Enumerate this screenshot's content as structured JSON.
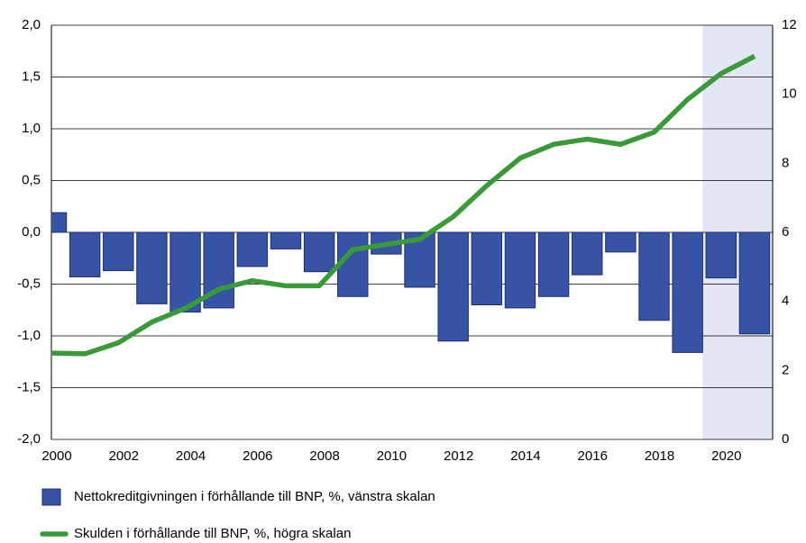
{
  "chart_data": {
    "type": "bar_line",
    "x": [
      2000,
      2001,
      2002,
      2003,
      2004,
      2005,
      2006,
      2007,
      2008,
      2009,
      2010,
      2011,
      2012,
      2013,
      2014,
      2015,
      2016,
      2017,
      2018,
      2019,
      2020,
      2021
    ],
    "series": [
      {
        "name": "Nettokreditgivningen i förhållande till BNP, %, vänstra skalan",
        "type": "bar",
        "axis": "y",
        "color": "#3753a5",
        "values": [
          0.19,
          -0.43,
          -0.37,
          -0.69,
          -0.77,
          -0.73,
          -0.33,
          -0.16,
          -0.38,
          -0.62,
          -0.21,
          -0.53,
          -1.05,
          -0.7,
          -0.73,
          -0.62,
          -0.41,
          -0.19,
          -0.85,
          -1.16,
          -0.44,
          -0.98
        ]
      },
      {
        "name": "Skulden i förhållande till BNP, %, högra skalan",
        "type": "line",
        "axis": "y2",
        "color": "#3a9a3a",
        "values": [
          2.5,
          2.48,
          2.8,
          3.4,
          3.8,
          4.35,
          4.6,
          4.45,
          4.45,
          5.5,
          5.65,
          5.8,
          6.45,
          7.35,
          8.15,
          8.55,
          8.7,
          8.55,
          8.9,
          9.85,
          10.6,
          11.1
        ]
      }
    ],
    "xlim": [
      2000,
      2021.54
    ],
    "xticks": [
      2000,
      2002,
      2004,
      2006,
      2008,
      2010,
      2012,
      2014,
      2016,
      2018,
      2020
    ],
    "ylim": [
      -2,
      2
    ],
    "yticks": [
      {
        "value": -2,
        "label": "-2,0"
      },
      {
        "value": -1.5,
        "label": "-1,5"
      },
      {
        "value": -1,
        "label": "-1,0"
      },
      {
        "value": -0.5,
        "label": "-0,5"
      },
      {
        "value": 0,
        "label": "0,0"
      },
      {
        "value": 0.5,
        "label": "0,5"
      },
      {
        "value": 1,
        "label": "1,0"
      },
      {
        "value": 1.5,
        "label": "1,5"
      },
      {
        "value": 2,
        "label": "2,0"
      }
    ],
    "y2lim": [
      0,
      12
    ],
    "y2ticks": [
      0,
      2,
      4,
      6,
      8,
      10,
      12
    ],
    "shade_x": [
      2019.45,
      2021.54
    ],
    "grid": true,
    "legend": "bottom"
  }
}
